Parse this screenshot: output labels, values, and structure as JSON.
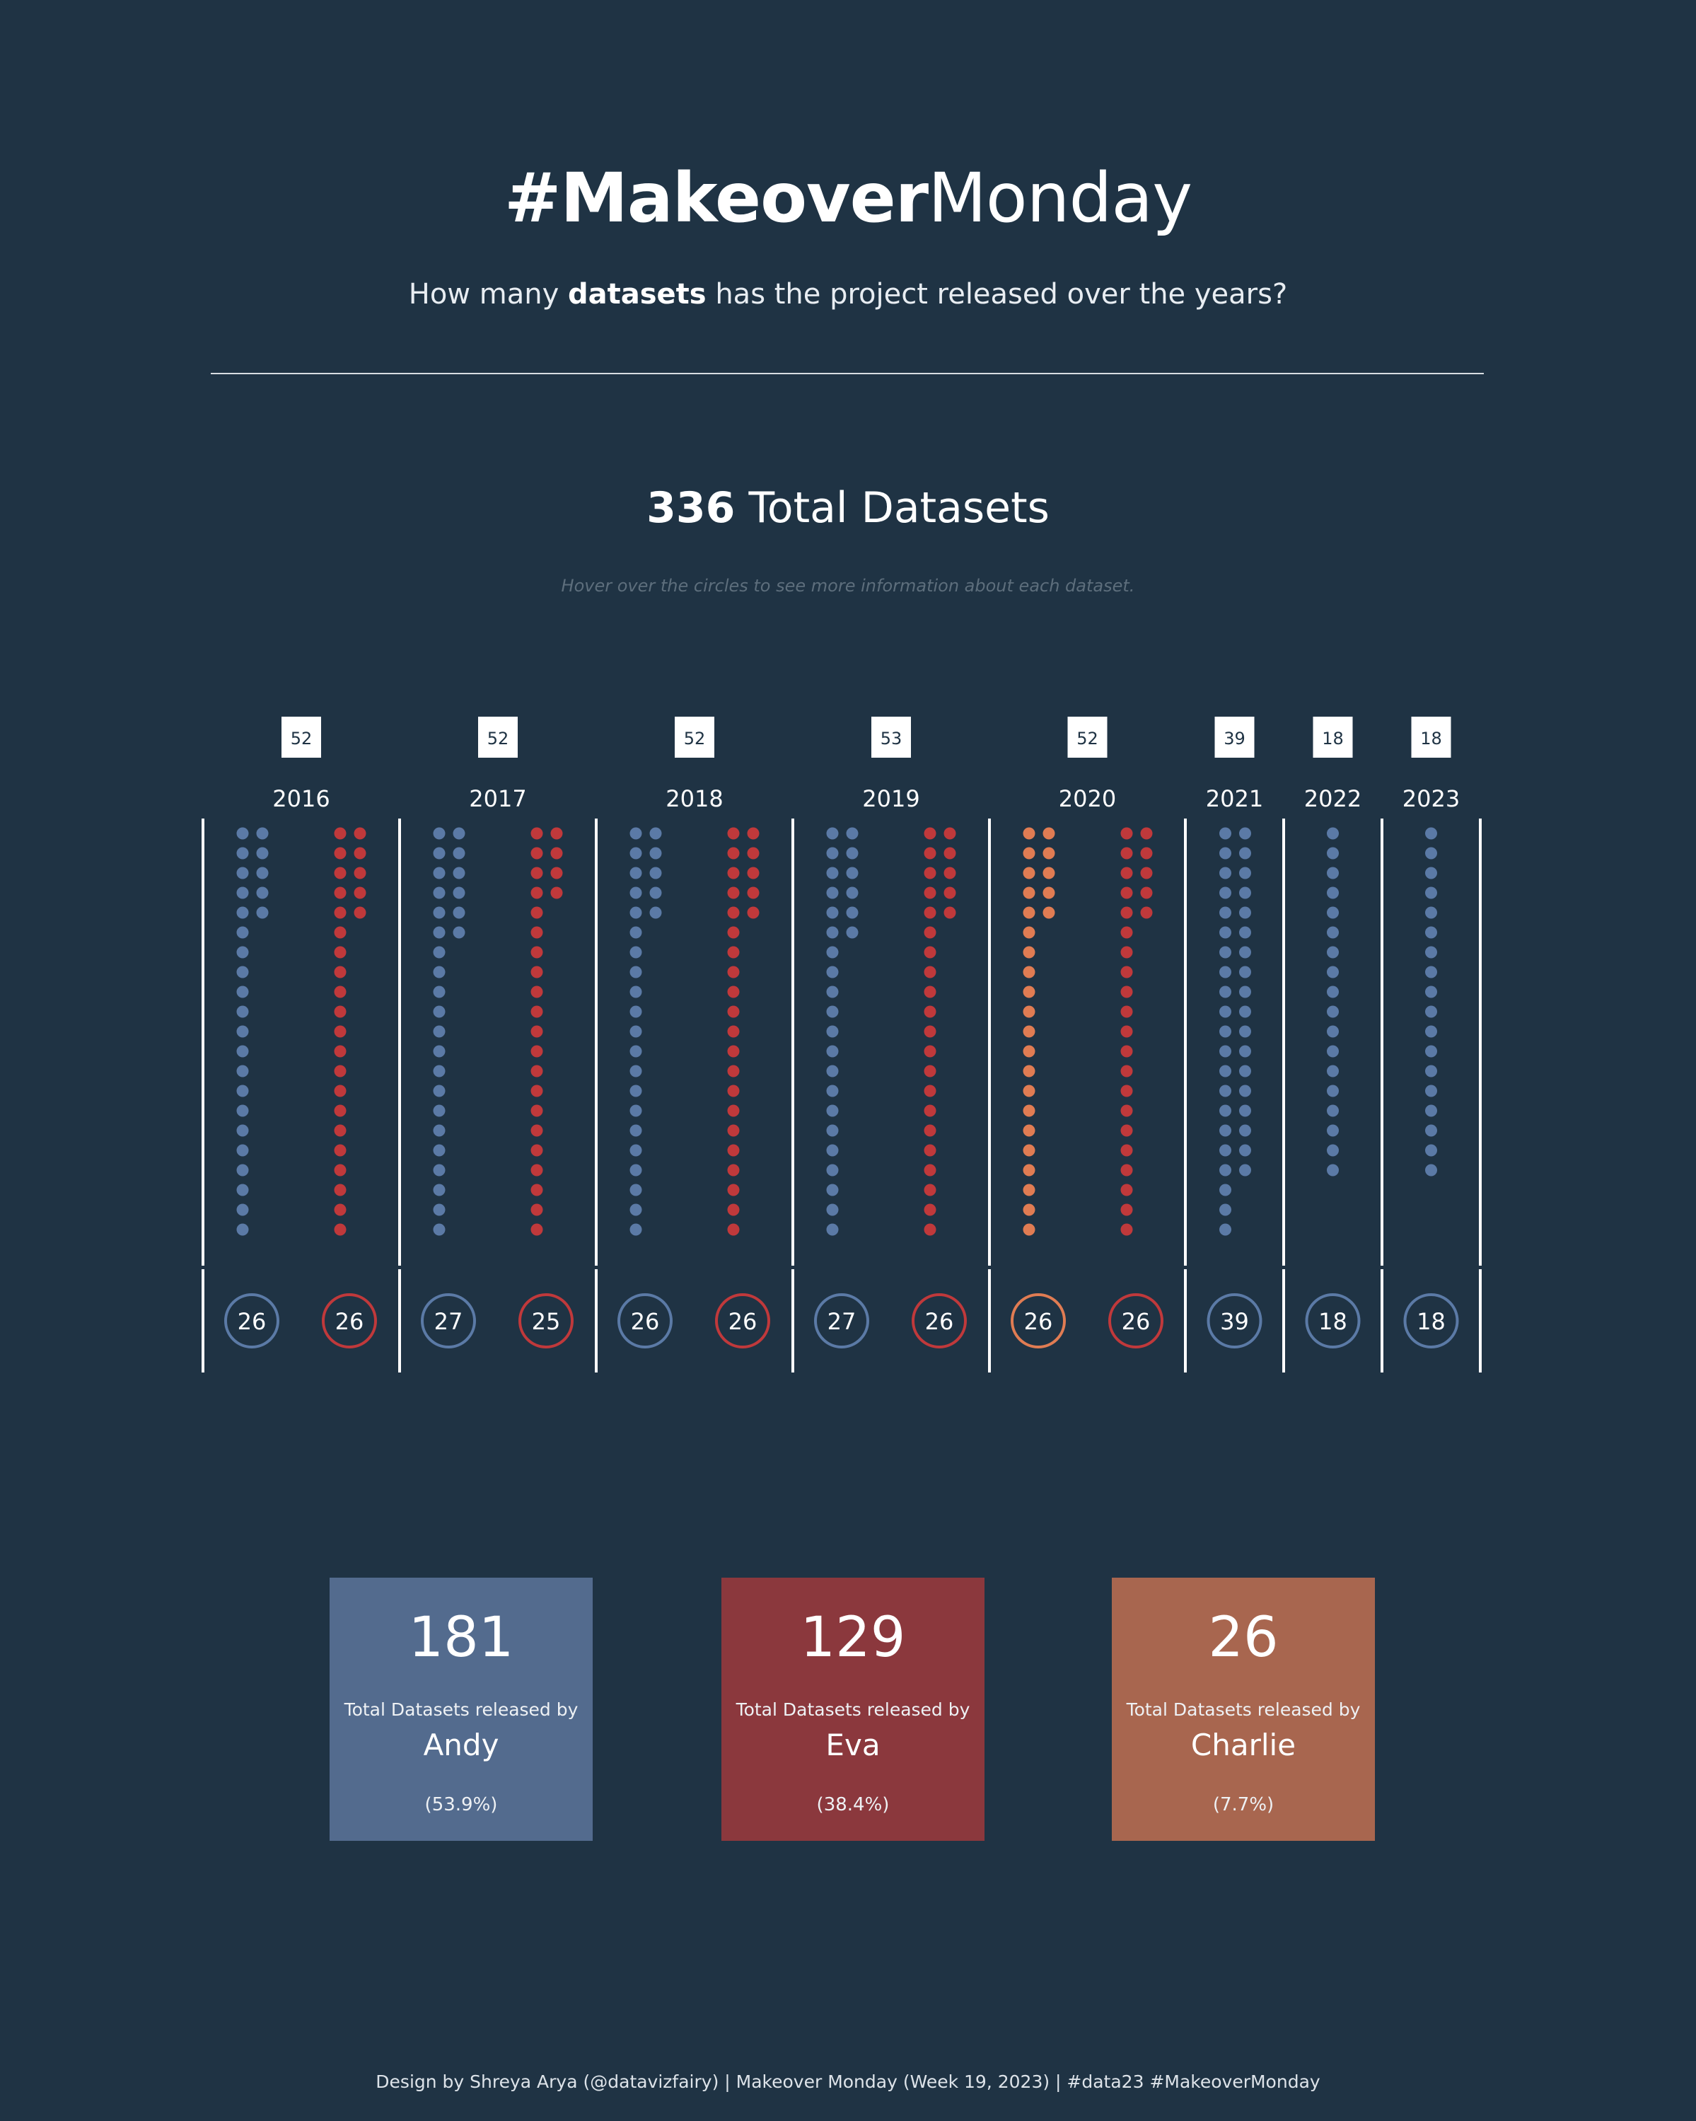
{
  "header": {
    "title_bold": "#Makeover",
    "title_light": "Monday",
    "subtitle_before": "How many ",
    "subtitle_bold": "datasets",
    "subtitle_after": " has the project released over the years?"
  },
  "total": {
    "value": "336",
    "label": " Total Datasets",
    "hint": "Hover over the circles to see more information about each dataset."
  },
  "colors": {
    "background": "#1f3344",
    "andy": "#5b7aa6",
    "eva": "#c0393b",
    "charlie": "#e07c53",
    "andy_card": "#536b8e",
    "eva_card": "#8b383d",
    "charlie_card": "#a8664f"
  },
  "chart_data": {
    "type": "dot-strip",
    "title": "336 Total Datasets",
    "years": [
      "2016",
      "2017",
      "2018",
      "2019",
      "2020",
      "2021",
      "2022",
      "2023"
    ],
    "year_totals": [
      52,
      52,
      52,
      53,
      52,
      39,
      18,
      18
    ],
    "series": [
      {
        "name": "Andy",
        "color": "#5b7aa6",
        "values": [
          26,
          27,
          26,
          27,
          0,
          39,
          18,
          18
        ]
      },
      {
        "name": "Eva",
        "color": "#c0393b",
        "values": [
          26,
          25,
          26,
          26,
          26,
          0,
          0,
          0
        ]
      },
      {
        "name": "Charlie",
        "color": "#e07c53",
        "values": [
          0,
          0,
          0,
          0,
          26,
          0,
          0,
          0
        ]
      }
    ],
    "groups": [
      {
        "year": "2016",
        "total": 52,
        "cols": [
          {
            "series": "Andy",
            "count": 26
          },
          {
            "series": "Eva",
            "count": 26
          }
        ]
      },
      {
        "year": "2017",
        "total": 52,
        "cols": [
          {
            "series": "Andy",
            "count": 27
          },
          {
            "series": "Eva",
            "count": 25
          }
        ]
      },
      {
        "year": "2018",
        "total": 52,
        "cols": [
          {
            "series": "Andy",
            "count": 26
          },
          {
            "series": "Eva",
            "count": 26
          }
        ]
      },
      {
        "year": "2019",
        "total": 53,
        "cols": [
          {
            "series": "Andy",
            "count": 27
          },
          {
            "series": "Eva",
            "count": 26
          }
        ]
      },
      {
        "year": "2020",
        "total": 52,
        "cols": [
          {
            "series": "Charlie",
            "count": 26
          },
          {
            "series": "Eva",
            "count": 26
          }
        ]
      },
      {
        "year": "2021",
        "total": 39,
        "cols": [
          {
            "series": "Andy",
            "count": 39
          }
        ]
      },
      {
        "year": "2022",
        "total": 18,
        "cols": [
          {
            "series": "Andy",
            "count": 18
          }
        ]
      },
      {
        "year": "2023",
        "total": 18,
        "cols": [
          {
            "series": "Andy",
            "count": 18
          }
        ]
      }
    ]
  },
  "cards": [
    {
      "value": "181",
      "label": "Total Datasets released by",
      "name": "Andy",
      "pct": "(53.9%)",
      "color": "#536b8e"
    },
    {
      "value": "129",
      "label": "Total Datasets released by",
      "name": "Eva",
      "pct": "(38.4%)",
      "color": "#8b383d"
    },
    {
      "value": "26",
      "label": "Total Datasets released by",
      "name": "Charlie",
      "pct": "(7.7%)",
      "color": "#a8664f"
    }
  ],
  "footer": "Design by Shreya Arya (@datavizfairy) | Makeover Monday (Week 19, 2023) | #data23 #MakeoverMonday"
}
